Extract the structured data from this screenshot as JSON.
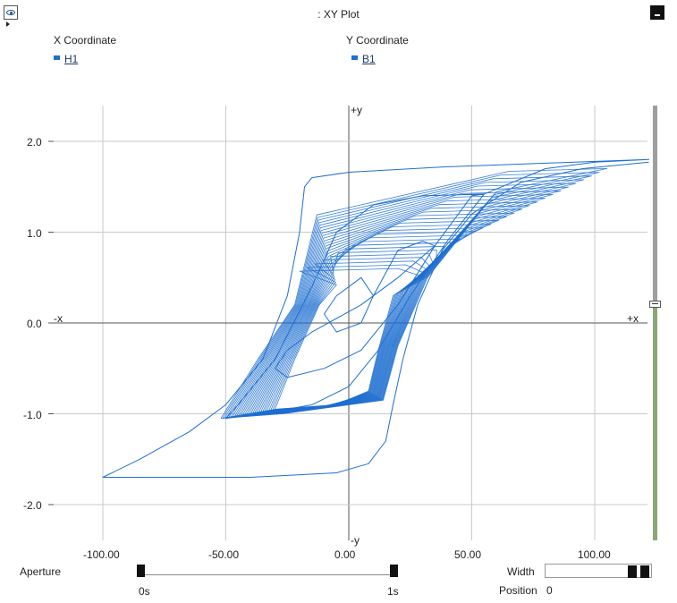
{
  "window": {
    "title": ": XY Plot"
  },
  "header": {
    "x_heading": "X Coordinate",
    "y_heading": "Y Coordinate",
    "x_signal": "H1",
    "y_signal": "B1",
    "signal_color": "#1e6fd0"
  },
  "plot": {
    "label_pos_y": "+y",
    "label_neg_y": "-y",
    "label_neg_x": "-x",
    "label_pos_x": "+x",
    "x_ticks": [
      "-100.00",
      "-50.00",
      "0.00",
      "50.00",
      "100.00"
    ],
    "y_ticks": [
      "2.0",
      "1.0",
      "0.0",
      "-1.0",
      "-2.0"
    ]
  },
  "controls": {
    "aperture_label": "Aperture",
    "aperture_start": "0s",
    "aperture_end": "1s",
    "width_label": "Width",
    "position_label": "Position",
    "position_value": "0"
  },
  "chart_data": {
    "type": "line",
    "title": "",
    "xlabel": "",
    "ylabel": "",
    "xlim": [
      -125,
      125
    ],
    "ylim": [
      -2.45,
      2.45
    ],
    "grid": true,
    "series": [
      {
        "name": "H1 vs B1",
        "color": "#1e6fd0",
        "points": [
          [
            10,
            0.3
          ],
          [
            5,
            0.5
          ],
          [
            -5,
            0.3
          ],
          [
            -10,
            0.1
          ],
          [
            -5,
            -0.1
          ],
          [
            5,
            0.0
          ],
          [
            10,
            0.3
          ],
          [
            20,
            0.8
          ],
          [
            30,
            0.9
          ],
          [
            35,
            0.85
          ],
          [
            20,
            0.5
          ],
          [
            5,
            0.2
          ],
          [
            -15,
            -0.1
          ],
          [
            -25,
            -0.3
          ],
          [
            -30,
            -0.5
          ],
          [
            -25,
            -0.6
          ],
          [
            -10,
            -0.5
          ],
          [
            5,
            -0.3
          ],
          [
            20,
            0.2
          ],
          [
            35,
            0.85
          ],
          [
            50,
            1.4
          ],
          [
            55,
            1.42
          ],
          [
            30,
            1.4
          ],
          [
            10,
            1.3
          ],
          [
            -5,
            1.0
          ],
          [
            -15,
            0.4
          ],
          [
            -30,
            -0.4
          ],
          [
            -45,
            -0.9
          ],
          [
            -50,
            -1.05
          ],
          [
            -35,
            -1.0
          ],
          [
            -15,
            -0.9
          ],
          [
            0,
            -0.7
          ],
          [
            12,
            -0.3
          ],
          [
            25,
            0.3
          ],
          [
            40,
            0.9
          ],
          [
            55,
            1.42
          ],
          [
            80,
            1.7
          ],
          [
            100,
            1.77
          ],
          [
            122,
            1.8
          ],
          [
            80,
            1.76
          ],
          [
            40,
            1.72
          ],
          [
            0,
            1.66
          ],
          [
            -15,
            1.6
          ],
          [
            -18,
            1.5
          ],
          [
            -20,
            1.0
          ],
          [
            -25,
            0.3
          ],
          [
            -35,
            -0.4
          ],
          [
            -50,
            -0.9
          ],
          [
            -65,
            -1.2
          ],
          [
            -85,
            -1.5
          ],
          [
            -100,
            -1.7
          ],
          [
            -80,
            -1.7
          ],
          [
            -40,
            -1.7
          ],
          [
            -5,
            -1.65
          ],
          [
            8,
            -1.55
          ],
          [
            15,
            -1.3
          ],
          [
            18,
            -0.9
          ],
          [
            22,
            -0.4
          ],
          [
            28,
            0.2
          ],
          [
            38,
            0.8
          ],
          [
            50,
            1.2
          ],
          [
            70,
            1.55
          ],
          [
            95,
            1.7
          ],
          [
            122,
            1.77
          ]
        ]
      }
    ]
  }
}
